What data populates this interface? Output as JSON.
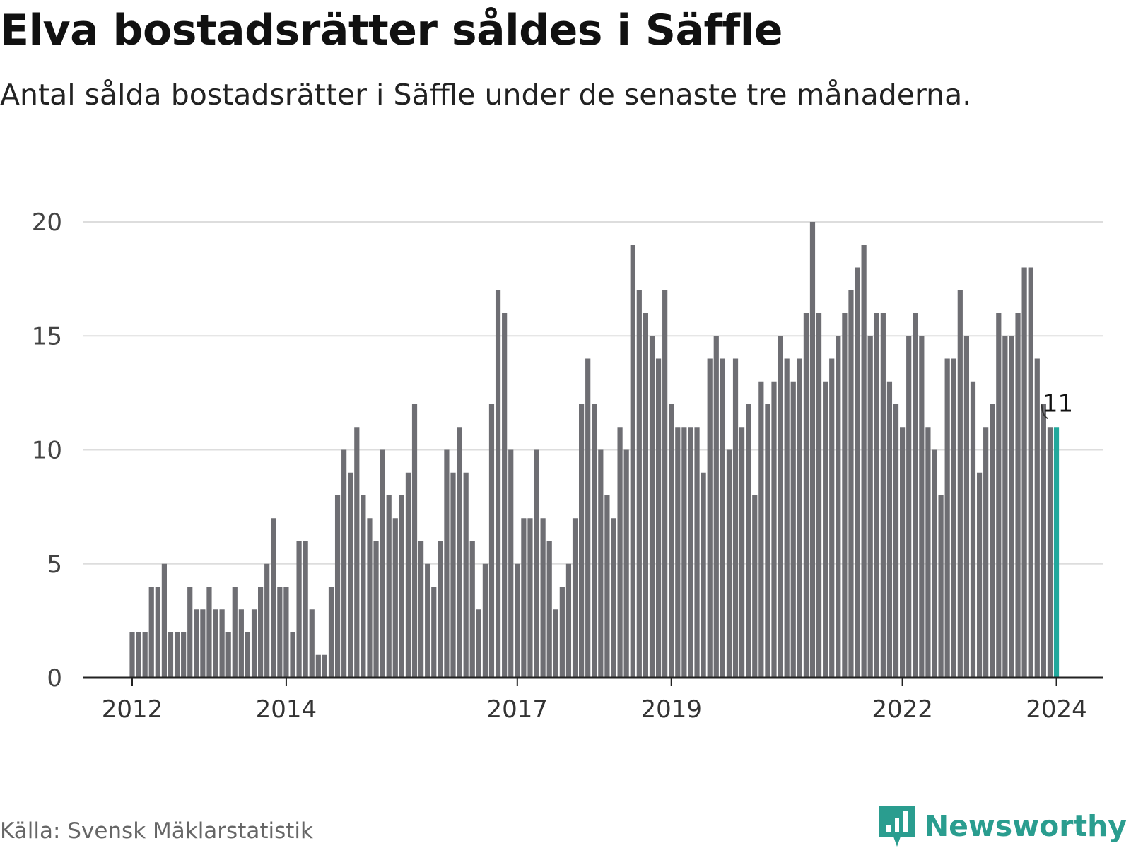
{
  "header": {
    "title": "Elva bostadsrätter såldes i Säffle",
    "subtitle": "Antal sålda bostadsrätter i Säffle under de senaste tre månaderna."
  },
  "footer": {
    "source": "Källa: Svensk Mäklarstatistik",
    "brand": "Newsworthy",
    "brand_icon": "bar-chart-icon"
  },
  "colors": {
    "bar": "#6e6e73",
    "highlight": "#21a89c",
    "grid": "#dddddd",
    "axis": "#222222",
    "brand": "#2a9d8f"
  },
  "chart_data": {
    "type": "bar",
    "title": "Elva bostadsrätter såldes i Säffle",
    "xlabel": "",
    "ylabel": "",
    "ylim": [
      0,
      20
    ],
    "yticks": [
      0,
      5,
      10,
      15,
      20
    ],
    "grid": true,
    "x_tick_labels": [
      {
        "label": "2012",
        "index": 0
      },
      {
        "label": "2014",
        "index": 24
      },
      {
        "label": "2017",
        "index": 60
      },
      {
        "label": "2019",
        "index": 84
      },
      {
        "label": "2022",
        "index": 120
      },
      {
        "label": "2024",
        "index": 144
      }
    ],
    "start_month": "2012-01",
    "values": [
      2,
      2,
      2,
      4,
      4,
      5,
      2,
      2,
      2,
      4,
      3,
      3,
      4,
      3,
      3,
      2,
      4,
      3,
      2,
      3,
      4,
      5,
      7,
      4,
      4,
      2,
      6,
      6,
      3,
      1,
      1,
      4,
      8,
      10,
      9,
      11,
      8,
      7,
      6,
      10,
      8,
      7,
      8,
      9,
      12,
      6,
      5,
      4,
      6,
      10,
      9,
      11,
      9,
      6,
      3,
      5,
      12,
      17,
      16,
      10,
      5,
      7,
      7,
      10,
      7,
      6,
      3,
      4,
      5,
      7,
      12,
      14,
      12,
      10,
      8,
      7,
      11,
      10,
      19,
      17,
      16,
      15,
      14,
      17,
      12,
      11,
      11,
      11,
      11,
      9,
      14,
      15,
      14,
      10,
      14,
      11,
      12,
      8,
      13,
      12,
      13,
      15,
      14,
      13,
      14,
      16,
      20,
      16,
      13,
      14,
      15,
      16,
      17,
      18,
      19,
      15,
      16,
      16,
      13,
      12,
      11,
      15,
      16,
      15,
      11,
      10,
      8,
      14,
      14,
      17,
      15,
      13,
      9,
      11,
      12,
      16,
      15,
      15,
      16,
      18,
      18,
      14,
      12,
      11,
      11
    ],
    "highlight_index": 144,
    "annotation": {
      "label": "11",
      "index": 144,
      "value": 11
    }
  }
}
